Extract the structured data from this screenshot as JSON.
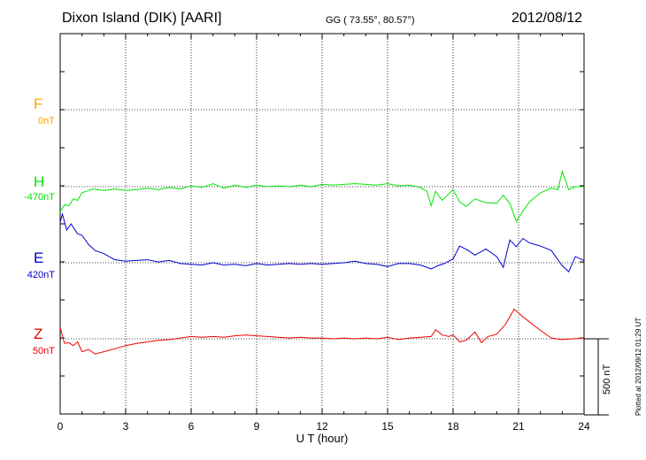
{
  "header": {
    "title": "Dixon Island (DIK)  [AARI]",
    "coords": "GG ( 73.55°,  80.57°)",
    "date": "2012/08/12"
  },
  "plotted_note": "Plotted at 2012/09/12 01:29 UT",
  "scale_bar": {
    "label": "500 nT",
    "value": 500
  },
  "components": [
    {
      "key": "F",
      "name": "F",
      "baseline": "0nT",
      "color": "#ffa500"
    },
    {
      "key": "H",
      "name": "H",
      "baseline": "-470nT",
      "color": "#00e600"
    },
    {
      "key": "E",
      "name": "E",
      "baseline": "420nT",
      "color": "#0000cc"
    },
    {
      "key": "Z",
      "name": "Z",
      "baseline": "50nT",
      "color": "#ee0000"
    }
  ],
  "chart_data": {
    "type": "line",
    "xlabel": "U T (hour)",
    "xlim": [
      0,
      24
    ],
    "x_ticks": [
      "0",
      "3",
      "6",
      "9",
      "12",
      "15",
      "18",
      "21",
      "24"
    ],
    "units": "nT offset from component baseline",
    "series": [
      {
        "name": "H",
        "x": [
          0,
          0.2,
          0.4,
          0.6,
          0.8,
          1.0,
          1.2,
          1.5,
          2.0,
          2.5,
          3.0,
          3.5,
          4.0,
          4.5,
          5.0,
          5.5,
          6.0,
          6.5,
          7.0,
          7.5,
          8.0,
          8.5,
          9.0,
          9.5,
          10.0,
          10.5,
          11.0,
          11.5,
          12.0,
          12.5,
          13.0,
          13.5,
          14.0,
          14.5,
          15.0,
          15.5,
          16.0,
          16.5,
          16.8,
          17.0,
          17.2,
          17.5,
          18.0,
          18.3,
          18.6,
          19.0,
          19.5,
          20.0,
          20.3,
          20.6,
          20.9,
          21.2,
          21.5,
          22.0,
          22.5,
          22.8,
          23.0,
          23.3,
          23.6,
          24.0
        ],
        "y": [
          -165,
          -120,
          -125,
          -80,
          -90,
          -40,
          -30,
          -15,
          -25,
          -15,
          -25,
          -20,
          -10,
          -20,
          -5,
          -15,
          5,
          -5,
          20,
          -10,
          10,
          -5,
          10,
          0,
          5,
          0,
          10,
          0,
          15,
          10,
          15,
          20,
          15,
          10,
          20,
          5,
          10,
          -5,
          -30,
          -125,
          -30,
          -90,
          -20,
          -100,
          -130,
          -80,
          -105,
          -110,
          -55,
          -110,
          -230,
          -160,
          -100,
          -40,
          -10,
          -20,
          100,
          -20,
          0,
          0
        ]
      },
      {
        "name": "E",
        "x": [
          0,
          0.1,
          0.3,
          0.5,
          0.8,
          1.0,
          1.3,
          1.6,
          2.0,
          2.5,
          3.0,
          3.5,
          4.0,
          4.5,
          5.0,
          5.5,
          6.0,
          6.5,
          7.0,
          7.5,
          8.0,
          8.5,
          9.0,
          9.5,
          10.0,
          10.5,
          11.0,
          11.5,
          12.0,
          12.5,
          13.0,
          13.5,
          14.0,
          14.5,
          15.0,
          15.5,
          16.0,
          16.5,
          17.0,
          17.3,
          17.6,
          18.0,
          18.3,
          18.7,
          19.0,
          19.5,
          20.0,
          20.3,
          20.6,
          20.9,
          21.2,
          21.5,
          22.0,
          22.5,
          23.0,
          23.3,
          23.6,
          24.0
        ],
        "y": [
          265,
          320,
          215,
          255,
          190,
          180,
          120,
          80,
          60,
          20,
          10,
          15,
          20,
          5,
          15,
          -5,
          -10,
          -15,
          0,
          -15,
          -10,
          -20,
          -5,
          -15,
          -10,
          -5,
          -10,
          -5,
          -10,
          -5,
          0,
          10,
          -5,
          -10,
          -25,
          -5,
          -5,
          -15,
          -40,
          -20,
          -5,
          25,
          110,
          80,
          50,
          90,
          40,
          -30,
          150,
          105,
          160,
          130,
          110,
          80,
          -20,
          -60,
          40,
          15
        ]
      },
      {
        "name": "Z",
        "x": [
          0,
          0.2,
          0.4,
          0.6,
          0.8,
          1.0,
          1.3,
          1.6,
          2.0,
          2.5,
          3.0,
          3.5,
          4.0,
          4.5,
          5.0,
          5.5,
          6.0,
          6.5,
          7.0,
          7.5,
          8.0,
          8.5,
          9.0,
          9.5,
          10.0,
          10.5,
          11.0,
          11.5,
          12.0,
          12.5,
          13.0,
          13.5,
          14.0,
          14.5,
          15.0,
          15.5,
          16.0,
          16.5,
          17.0,
          17.2,
          17.5,
          17.8,
          18.0,
          18.3,
          18.6,
          19.0,
          19.3,
          19.6,
          20.0,
          20.4,
          20.8,
          21.2,
          21.6,
          22.0,
          22.5,
          23.0,
          23.5,
          24.0
        ],
        "y": [
          75,
          -30,
          -25,
          -45,
          -20,
          -85,
          -70,
          -100,
          -85,
          -65,
          -45,
          -30,
          -20,
          -10,
          -5,
          5,
          15,
          10,
          15,
          10,
          20,
          25,
          20,
          15,
          10,
          5,
          10,
          5,
          5,
          0,
          5,
          0,
          5,
          0,
          10,
          -5,
          5,
          10,
          15,
          60,
          25,
          15,
          25,
          -20,
          -10,
          45,
          -25,
          15,
          30,
          95,
          195,
          145,
          100,
          55,
          5,
          -5,
          0,
          5
        ]
      }
    ]
  }
}
